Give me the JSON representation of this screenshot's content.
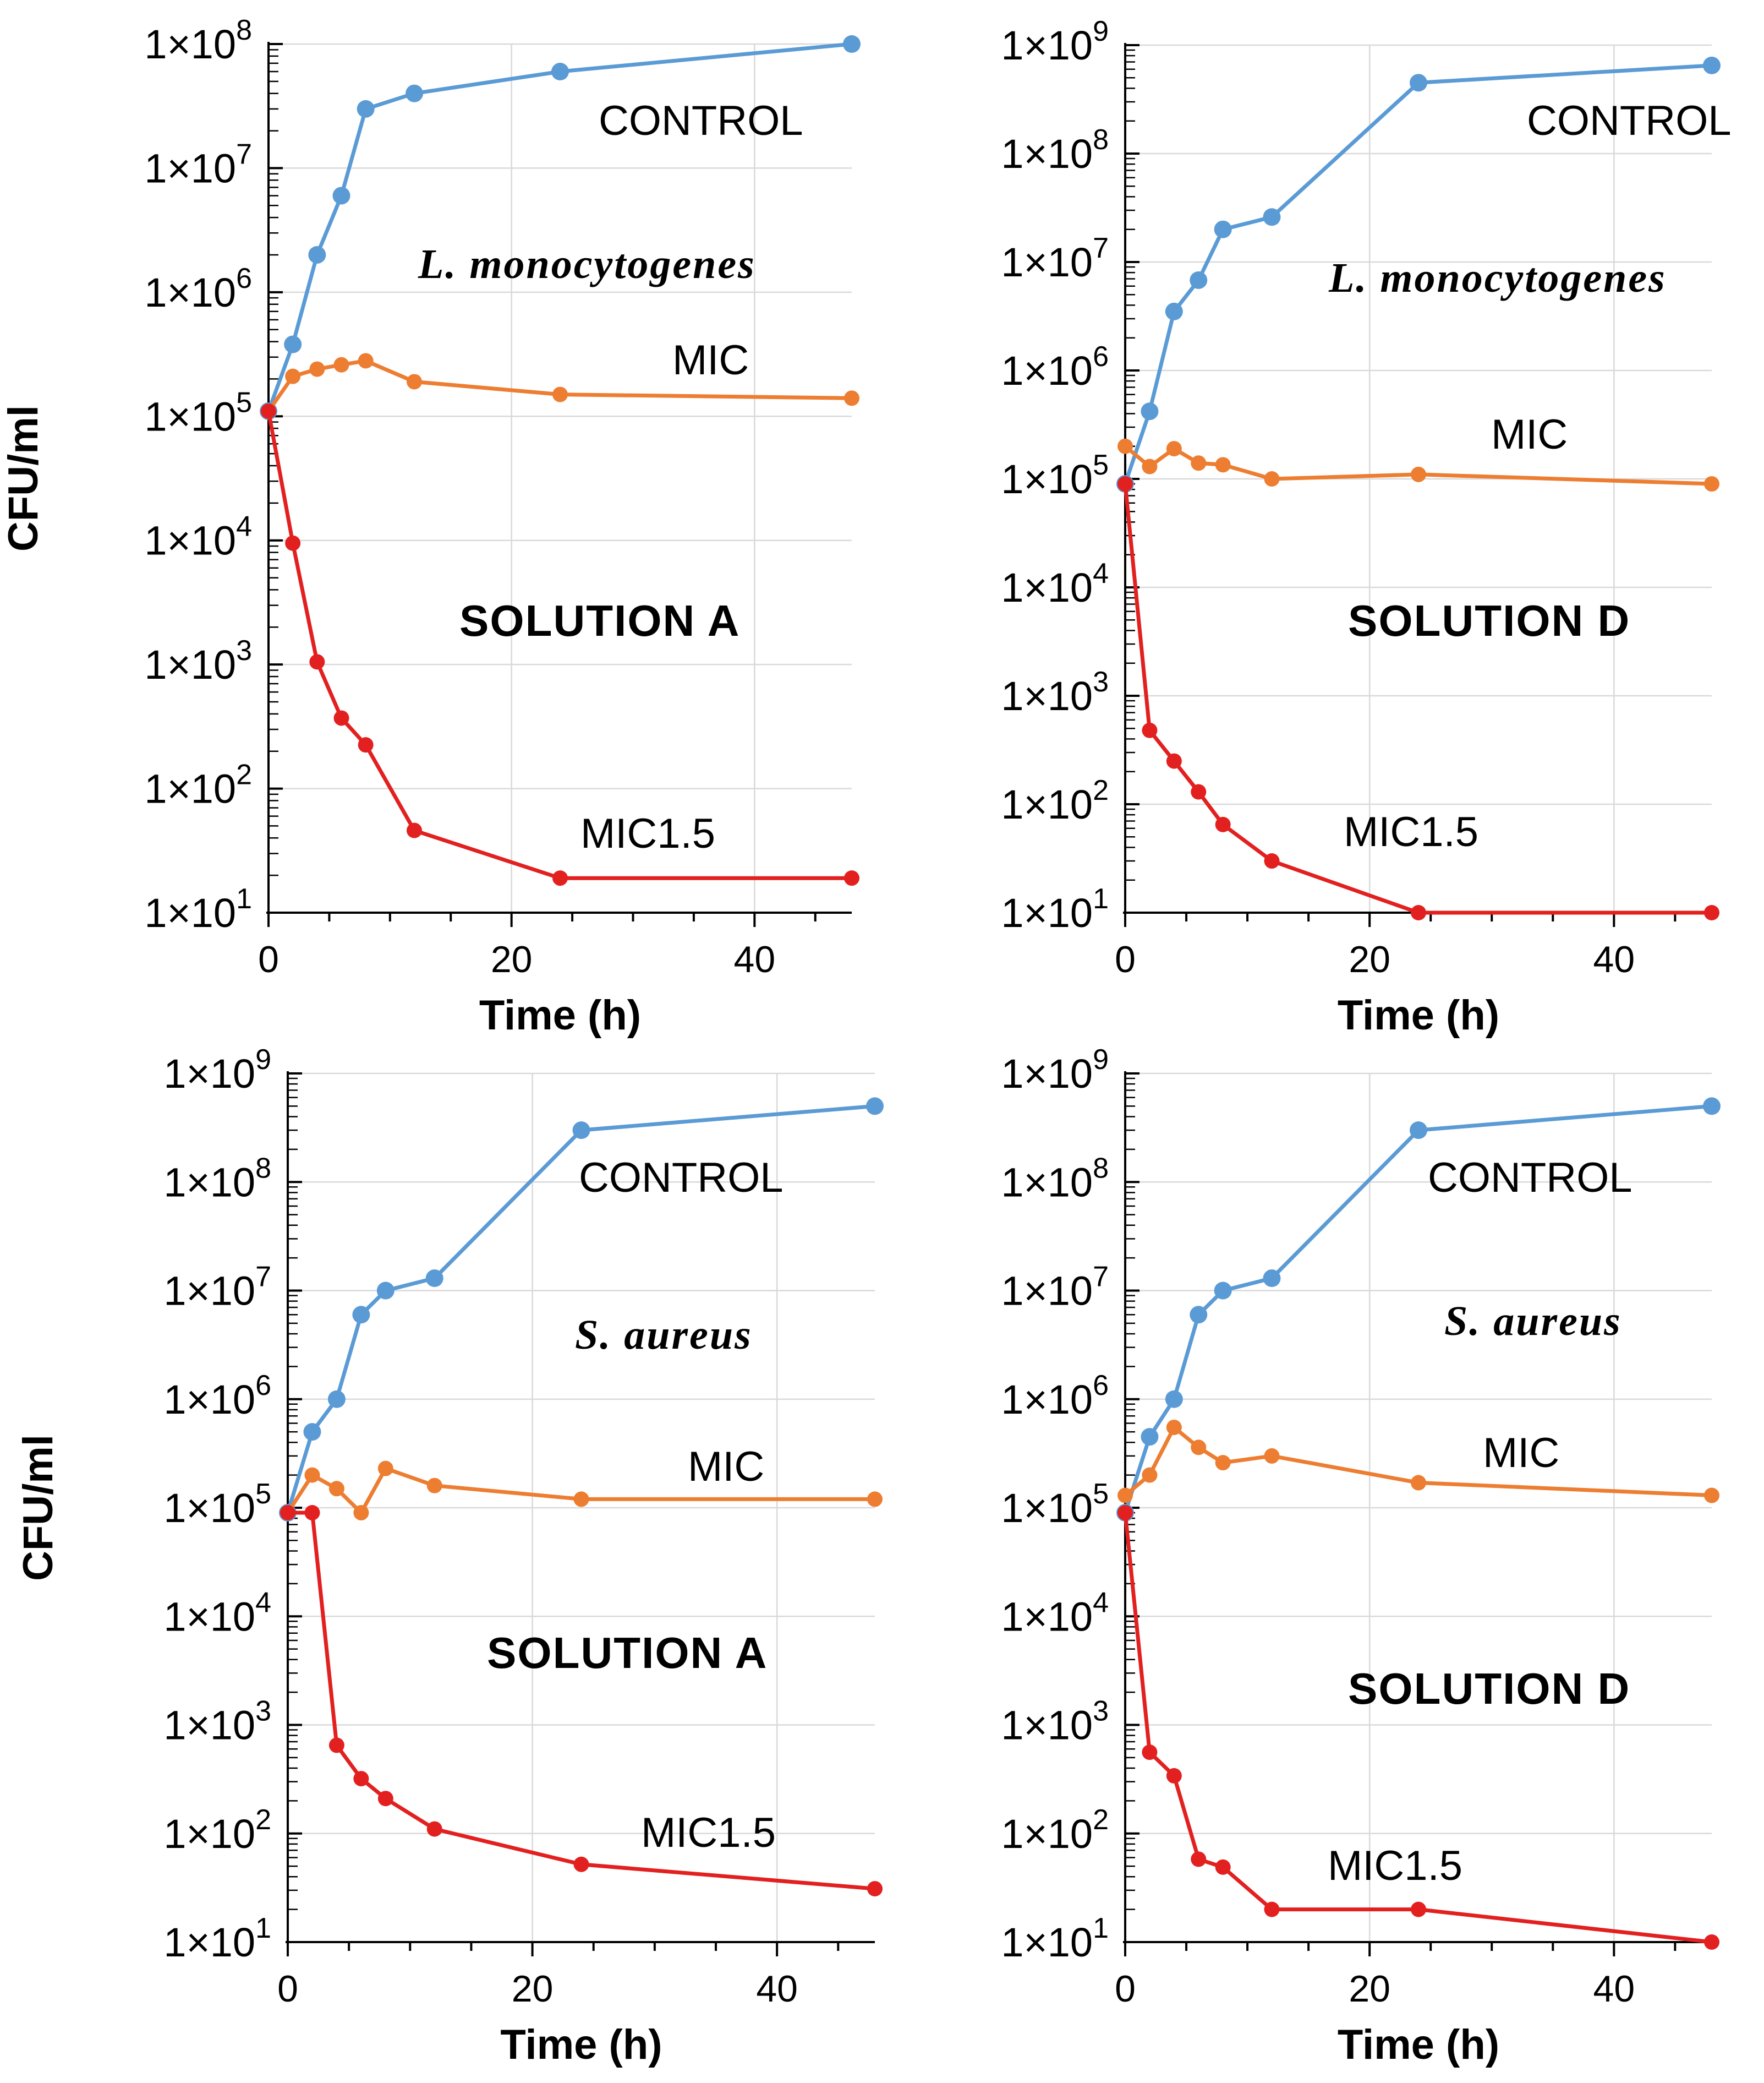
{
  "chart_data": [
    {
      "type": "line",
      "title": "SOLUTION A",
      "organism": "L. monocytogenes",
      "xlabel": "Time (h)",
      "ylabel": "CFU/ml",
      "yscale": "log",
      "ylim": [
        10.0,
        100000000.0
      ],
      "xlim": [
        0,
        48
      ],
      "xticks": [
        0,
        20,
        40
      ],
      "yticks": [
        10.0,
        100.0,
        1000.0,
        10000.0,
        100000.0,
        1000000.0,
        10000000.0,
        100000000.0
      ],
      "series": [
        {
          "name": "CONTROL",
          "color": "#5b9bd5",
          "x": [
            0,
            2,
            4,
            6,
            8,
            12,
            24,
            48
          ],
          "values": [
            110000.0,
            380000.0,
            2000000.0,
            6000000.0,
            30000000.0,
            40000000.0,
            60000000.0,
            100000000.0
          ]
        },
        {
          "name": "MIC",
          "color": "#ed7d31",
          "x": [
            0,
            2,
            4,
            6,
            8,
            12,
            24,
            48
          ],
          "values": [
            110000.0,
            210000.0,
            240000.0,
            260000.0,
            280000.0,
            190000.0,
            150000.0,
            140000.0
          ]
        },
        {
          "name": "MIC1.5",
          "color": "#e32020",
          "x": [
            0,
            2,
            4,
            6,
            8,
            12,
            24,
            48
          ],
          "values": [
            110000.0,
            9500.0,
            1050.0,
            370.0,
            225.0,
            46,
            19,
            19
          ]
        }
      ]
    },
    {
      "type": "line",
      "title": "SOLUTION D",
      "organism": "L. monocytogenes",
      "xlabel": "Time (h)",
      "ylabel": "",
      "yscale": "log",
      "ylim": [
        10.0,
        1000000000.0
      ],
      "xlim": [
        0,
        48
      ],
      "xticks": [
        0,
        20,
        40
      ],
      "yticks": [
        10.0,
        100.0,
        1000.0,
        10000.0,
        100000.0,
        1000000.0,
        10000000.0,
        100000000.0,
        1000000000.0
      ],
      "series": [
        {
          "name": "CONTROL",
          "color": "#5b9bd5",
          "x": [
            0,
            2,
            4,
            6,
            8,
            12,
            24,
            48
          ],
          "values": [
            90000.0,
            420000.0,
            3500000.0,
            6800000.0,
            20000000.0,
            26000000.0,
            450000000.0,
            650000000.0
          ]
        },
        {
          "name": "MIC",
          "color": "#ed7d31",
          "x": [
            0,
            2,
            4,
            6,
            8,
            12,
            24,
            48
          ],
          "values": [
            200000.0,
            130000.0,
            190000.0,
            140000.0,
            135000.0,
            100000.0,
            110000.0,
            90000.0
          ]
        },
        {
          "name": "MIC1.5",
          "color": "#e32020",
          "x": [
            0,
            2,
            4,
            6,
            8,
            12,
            24,
            48
          ],
          "values": [
            90000.0,
            480.0,
            250.0,
            130.0,
            65,
            30,
            10,
            10
          ]
        }
      ]
    },
    {
      "type": "line",
      "title": "SOLUTION A",
      "organism": "S. aureus",
      "xlabel": "Time (h)",
      "ylabel": "CFU/ml",
      "yscale": "log",
      "ylim": [
        10.0,
        1000000000.0
      ],
      "xlim": [
        0,
        48
      ],
      "xticks": [
        0,
        20,
        40
      ],
      "yticks": [
        10.0,
        100.0,
        1000.0,
        10000.0,
        100000.0,
        1000000.0,
        10000000.0,
        100000000.0,
        1000000000.0
      ],
      "series": [
        {
          "name": "CONTROL",
          "color": "#5b9bd5",
          "x": [
            0,
            2,
            4,
            6,
            8,
            12,
            24,
            48
          ],
          "values": [
            90000.0,
            500000.0,
            1000000.0,
            6000000.0,
            10000000.0,
            13000000.0,
            300000000.0,
            500000000.0
          ]
        },
        {
          "name": "MIC",
          "color": "#ed7d31",
          "x": [
            0,
            2,
            4,
            6,
            8,
            12,
            24,
            48
          ],
          "values": [
            90000.0,
            200000.0,
            150000.0,
            90000.0,
            230000.0,
            160000.0,
            120000.0,
            120000.0
          ]
        },
        {
          "name": "MIC1.5",
          "color": "#e32020",
          "x": [
            0,
            2,
            4,
            6,
            8,
            12,
            24,
            48
          ],
          "values": [
            90000.0,
            90000.0,
            650.0,
            320.0,
            210.0,
            110.0,
            52,
            31
          ]
        }
      ]
    },
    {
      "type": "line",
      "title": "SOLUTION D",
      "organism": "S. aureus",
      "xlabel": "Time (h)",
      "ylabel": "",
      "yscale": "log",
      "ylim": [
        10.0,
        1000000000.0
      ],
      "xlim": [
        0,
        48
      ],
      "xticks": [
        0,
        20,
        40
      ],
      "yticks": [
        10.0,
        100.0,
        1000.0,
        10000.0,
        100000.0,
        1000000.0,
        10000000.0,
        100000000.0,
        1000000000.0
      ],
      "series": [
        {
          "name": "CONTROL",
          "color": "#5b9bd5",
          "x": [
            0,
            2,
            4,
            6,
            8,
            12,
            24,
            48
          ],
          "values": [
            90000.0,
            450000.0,
            1000000.0,
            6000000.0,
            10000000.0,
            13000000.0,
            300000000.0,
            500000000.0
          ]
        },
        {
          "name": "MIC",
          "color": "#ed7d31",
          "x": [
            0,
            2,
            4,
            6,
            8,
            12,
            24,
            48
          ],
          "values": [
            130000.0,
            200000.0,
            550000.0,
            360000.0,
            260000.0,
            300000.0,
            170000.0,
            130000.0
          ]
        },
        {
          "name": "MIC1.5",
          "color": "#e32020",
          "x": [
            0,
            2,
            4,
            6,
            8,
            12,
            24,
            48
          ],
          "values": [
            90000.0,
            560.0,
            340.0,
            58,
            49,
            20,
            20,
            10
          ]
        }
      ]
    }
  ]
}
